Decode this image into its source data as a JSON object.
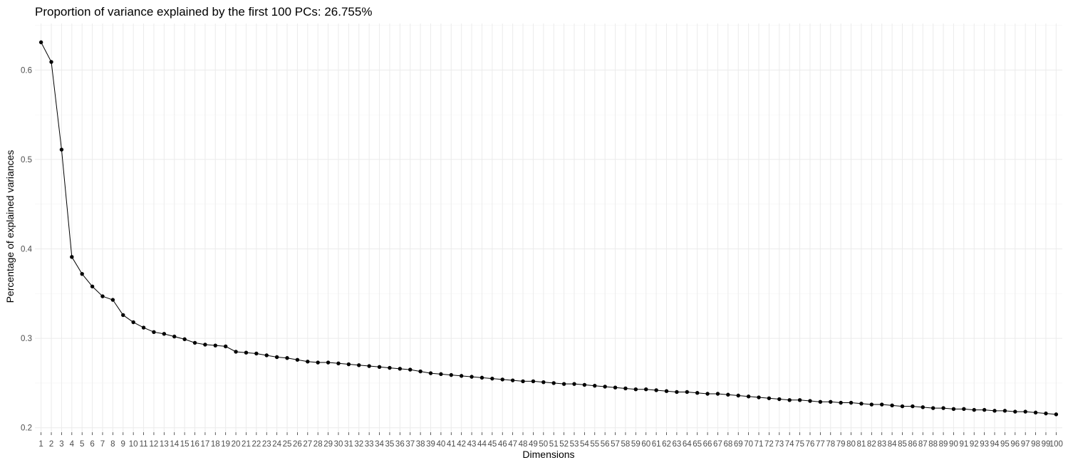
{
  "chart_data": {
    "type": "line",
    "title": "Proportion of variance explained by the first 100 PCs: 26.755%",
    "xlabel": "Dimensions",
    "ylabel": "Percentage of explained variances",
    "x": [
      1,
      2,
      3,
      4,
      5,
      6,
      7,
      8,
      9,
      10,
      11,
      12,
      13,
      14,
      15,
      16,
      17,
      18,
      19,
      20,
      21,
      22,
      23,
      24,
      25,
      26,
      27,
      28,
      29,
      30,
      31,
      32,
      33,
      34,
      35,
      36,
      37,
      38,
      39,
      40,
      41,
      42,
      43,
      44,
      45,
      46,
      47,
      48,
      49,
      50,
      51,
      52,
      53,
      54,
      55,
      56,
      57,
      58,
      59,
      60,
      61,
      62,
      63,
      64,
      65,
      66,
      67,
      68,
      69,
      70,
      71,
      72,
      73,
      74,
      75,
      76,
      77,
      78,
      79,
      80,
      81,
      82,
      83,
      84,
      85,
      86,
      87,
      88,
      89,
      90,
      91,
      92,
      93,
      94,
      95,
      96,
      97,
      98,
      99,
      100
    ],
    "y": [
      0.631,
      0.609,
      0.511,
      0.391,
      0.372,
      0.358,
      0.347,
      0.343,
      0.326,
      0.318,
      0.312,
      0.307,
      0.305,
      0.302,
      0.299,
      0.295,
      0.293,
      0.292,
      0.291,
      0.285,
      0.284,
      0.283,
      0.281,
      0.279,
      0.278,
      0.276,
      0.274,
      0.273,
      0.273,
      0.272,
      0.271,
      0.27,
      0.269,
      0.268,
      0.267,
      0.266,
      0.265,
      0.263,
      0.261,
      0.26,
      0.259,
      0.258,
      0.257,
      0.256,
      0.255,
      0.254,
      0.253,
      0.252,
      0.252,
      0.251,
      0.25,
      0.249,
      0.249,
      0.248,
      0.247,
      0.246,
      0.245,
      0.244,
      0.243,
      0.243,
      0.242,
      0.241,
      0.24,
      0.24,
      0.239,
      0.238,
      0.238,
      0.237,
      0.236,
      0.235,
      0.234,
      0.233,
      0.232,
      0.231,
      0.231,
      0.23,
      0.229,
      0.229,
      0.228,
      0.228,
      0.227,
      0.226,
      0.226,
      0.225,
      0.224,
      0.224,
      0.223,
      0.222,
      0.222,
      0.221,
      0.221,
      0.22,
      0.22,
      0.219,
      0.219,
      0.218,
      0.218,
      0.217,
      0.216,
      0.215
    ],
    "yticks": [
      0.2,
      0.3,
      0.4,
      0.5,
      0.6
    ],
    "ytick_labels": [
      "0.2",
      "0.3",
      "0.4",
      "0.5",
      "0.6"
    ],
    "ylim": [
      0.195,
      0.652
    ],
    "xlim": [
      0.4,
      100.6
    ],
    "grid": true,
    "point_color": "#000000",
    "line_color": "#000000"
  }
}
